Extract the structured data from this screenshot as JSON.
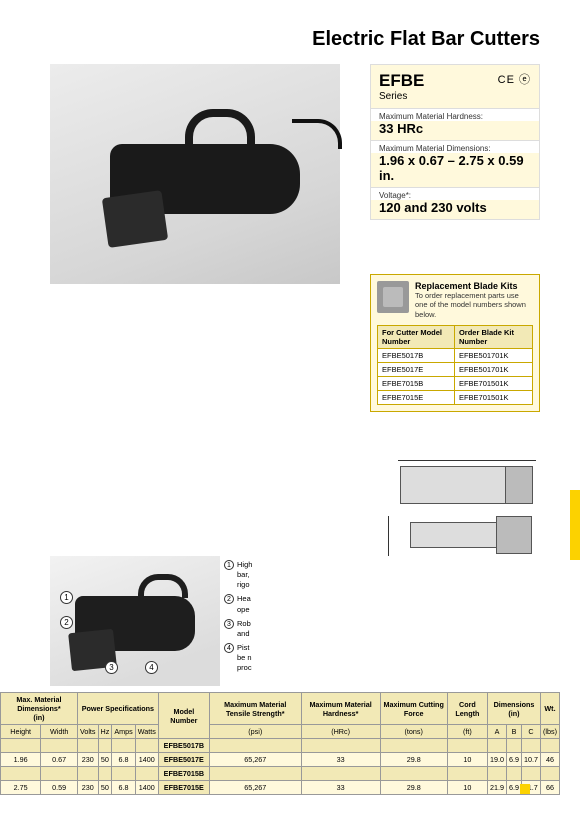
{
  "title": "Electric Flat Bar Cutters",
  "series": {
    "name": "EFBE",
    "sub": "Series",
    "marks": "CE ⓔ"
  },
  "specs": [
    {
      "label": "Maximum Material Hardness:",
      "value": "33 HRc"
    },
    {
      "label": "Maximum Material Dimensions:",
      "value": "1.96 x 0.67 – 2.75 x 0.59 in."
    },
    {
      "label": "Voltage*:",
      "value": "120 and 230 volts"
    }
  ],
  "blade_kit": {
    "title": "Replacement Blade Kits",
    "desc": "To order replacement parts use one of the model numbers shown below.",
    "col1": "For Cutter Model Number",
    "col2": "Order Blade Kit Number",
    "rows": [
      [
        "EFBE5017B",
        "EFBE501701K"
      ],
      [
        "EFBE5017E",
        "EFBE501701K"
      ],
      [
        "EFBE7015B",
        "EFBE701501K"
      ],
      [
        "EFBE7015E",
        "EFBE701501K"
      ]
    ]
  },
  "features": [
    "High bar, rigo",
    "Hea ope",
    "Rob and",
    "Pist be n proc"
  ],
  "table": {
    "head1": [
      "Max. Material Dimensions*",
      "Power Specifications",
      "Model Number",
      "Maximum Material Tensile Strength*",
      "Maximum Material Hardness*",
      "Maximum Cutting Force",
      "Cord Length",
      "Dimensions",
      "Wt."
    ],
    "head1_units": [
      "(in)",
      "",
      "",
      "(psi)",
      "(HRc)",
      "(tons)",
      "(ft)",
      "(in)",
      "(lbs)"
    ],
    "head2": [
      "Height",
      "Width",
      "Volts",
      "Hz",
      "Amps",
      "Watts",
      "",
      "",
      "",
      "",
      "",
      "A",
      "B",
      "C",
      ""
    ],
    "rows": [
      {
        "type": "model",
        "cells": [
          "",
          "",
          "",
          "",
          "",
          "",
          "EFBE5017B",
          "",
          "",
          "",
          "",
          "",
          "",
          "",
          ""
        ]
      },
      {
        "type": "alt",
        "cells": [
          "1.96",
          "0.67",
          "230",
          "50",
          "6.8",
          "1400",
          "EFBE5017E",
          "65,267",
          "33",
          "29.8",
          "10",
          "19.0",
          "6.9",
          "10.7",
          "46"
        ]
      },
      {
        "type": "model",
        "cells": [
          "",
          "",
          "",
          "",
          "",
          "",
          "EFBE7015B",
          "",
          "",
          "",
          "",
          "",
          "",
          "",
          ""
        ]
      },
      {
        "type": "alt",
        "cells": [
          "2.75",
          "0.59",
          "230",
          "50",
          "6.8",
          "1400",
          "EFBE7015E",
          "65,267",
          "33",
          "29.8",
          "10",
          "21.9",
          "6.9",
          "11.7",
          "66"
        ]
      }
    ]
  },
  "colors": {
    "cream": "#fff9dc",
    "gold": "#f2e9b6",
    "accent": "#fcd200"
  }
}
